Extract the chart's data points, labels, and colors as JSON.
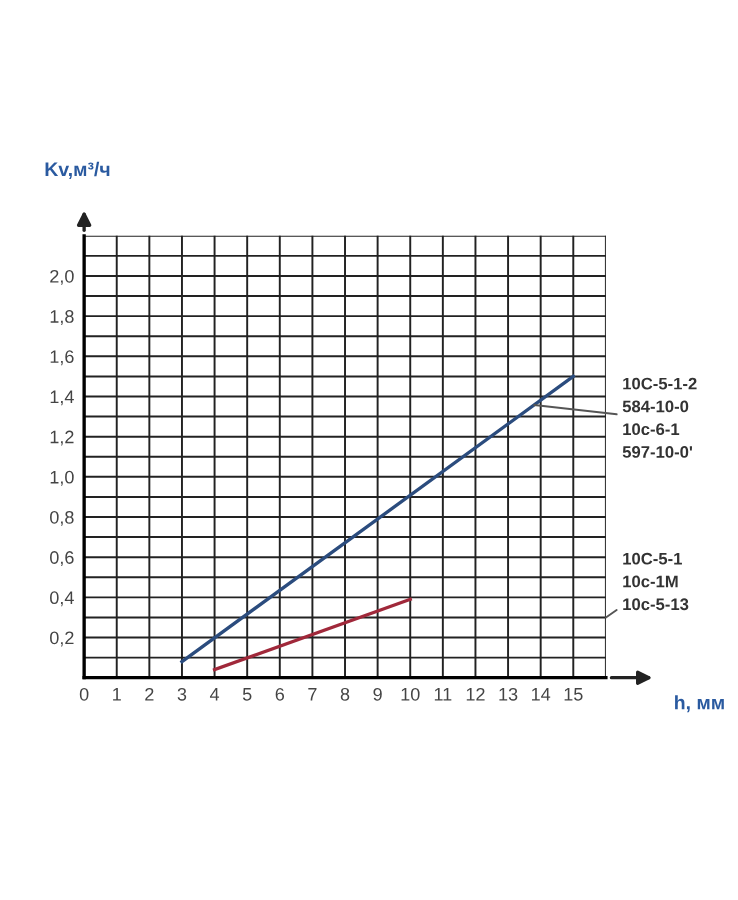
{
  "chart_data": {
    "type": "line",
    "ylabel": "Kv,м³/ч",
    "xlabel": "h, мм",
    "xlim": [
      0,
      16
    ],
    "ylim": [
      0,
      2.2
    ],
    "xticks": [
      0,
      1,
      2,
      3,
      4,
      5,
      6,
      7,
      8,
      9,
      10,
      11,
      12,
      13,
      14,
      15
    ],
    "yticks": [
      {
        "value": 0.2,
        "label": "0,2"
      },
      {
        "value": 0.4,
        "label": "0,4"
      },
      {
        "value": 0.6,
        "label": "0,6"
      },
      {
        "value": 0.8,
        "label": "0,8"
      },
      {
        "value": 1.0,
        "label": "1,0"
      },
      {
        "value": 1.2,
        "label": "1,2"
      },
      {
        "value": 1.4,
        "label": "1,4"
      },
      {
        "value": 1.6,
        "label": "1,6"
      },
      {
        "value": 1.8,
        "label": "1,8"
      },
      {
        "value": 2.0,
        "label": "2,0"
      }
    ],
    "grid": true,
    "legend": false,
    "marker": "none",
    "line_style": "solid",
    "series": [
      {
        "name": "10C-5-1-2\n584-10-0\n10c-6-1\n597-10-0'",
        "color": "#2b4c7e",
        "x": [
          3,
          15
        ],
        "values": [
          0.08,
          1.5
        ]
      },
      {
        "name": "10C-5-1\n10c-1M\n10c-5-13",
        "color": "#a0283a",
        "x": [
          4,
          10
        ],
        "values": [
          0.04,
          0.39
        ]
      }
    ]
  }
}
